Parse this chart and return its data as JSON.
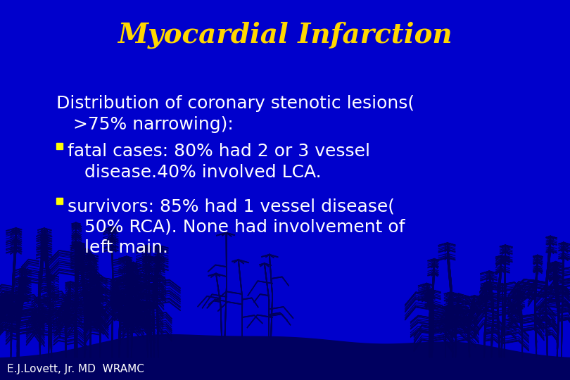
{
  "title": "Myocardial Infarction",
  "title_color": "#FFD700",
  "title_fontsize": 28,
  "title_style": "italic",
  "title_font": "serif",
  "bg_color": "#0000CC",
  "text_color": "#FFFFFF",
  "bullet_color": "#FFFF00",
  "body_fontsize": 18,
  "footer_text": "E.J.Lovett, Jr. MD  WRAMC",
  "footer_fontsize": 11,
  "line1": "Distribution of coronary stenotic lesions(",
  "line2": "   >75% narrowing):",
  "bullet1_text": "fatal cases: 80% had 2 or 3 vessel\n   disease.40% involved LCA.",
  "bullet2_text": "survivors: 85% had 1 vessel disease(\n   50% RCA). None had involvement of\n   left main.",
  "ground_color": "#000080",
  "plant_color": "#00008B"
}
